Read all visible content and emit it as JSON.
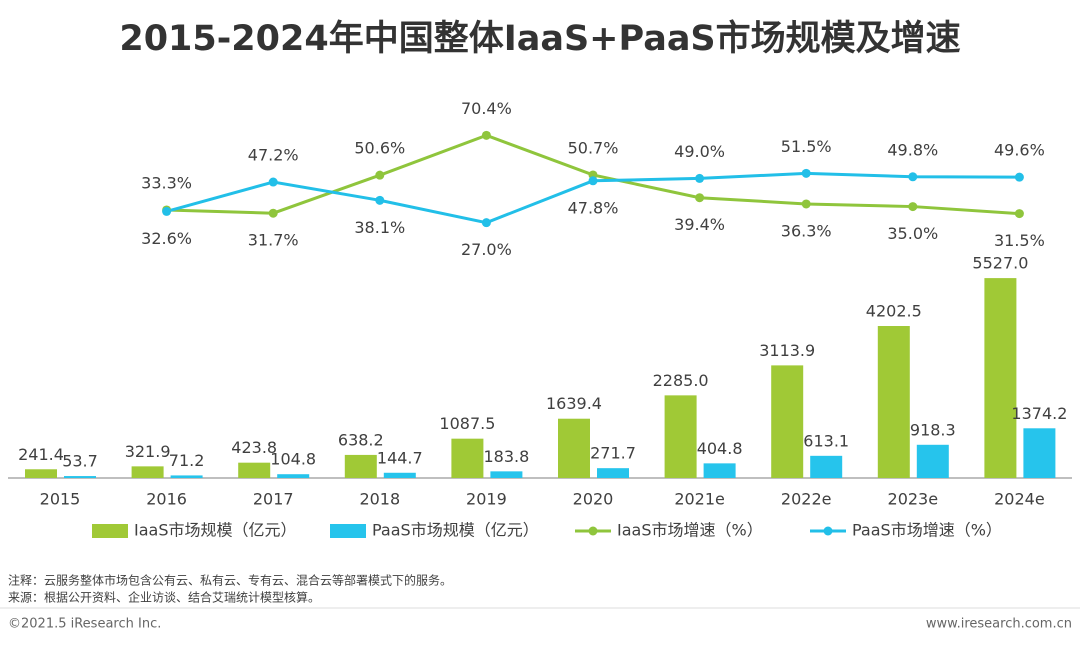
{
  "chart_data": {
    "type": "bar_line",
    "title": "2015-2024年中国整体IaaS+PaaS市场规模及增速",
    "categories": [
      "2015",
      "2016",
      "2017",
      "2018",
      "2019",
      "2020",
      "2021e",
      "2022e",
      "2023e",
      "2024e"
    ],
    "series": [
      {
        "name": "IaaS市场规模（亿元）",
        "kind": "bar",
        "color": "#a0c936",
        "values": [
          241.4,
          321.9,
          423.8,
          638.2,
          1087.5,
          1639.4,
          2285.0,
          3113.9,
          4202.5,
          5527.0
        ],
        "value_labels": [
          "241.4",
          "321.9",
          "423.8",
          "638.2",
          "1087.5",
          "1639.4",
          "2285.0",
          "3113.9",
          "4202.5",
          "5527.0"
        ]
      },
      {
        "name": "PaaS市场规模（亿元）",
        "kind": "bar",
        "color": "#26c4ec",
        "values": [
          53.7,
          71.2,
          104.8,
          144.7,
          183.8,
          271.7,
          404.8,
          613.1,
          918.3,
          1374.2
        ],
        "value_labels": [
          "53.7",
          "71.2",
          "104.8",
          "144.7",
          "183.8",
          "271.7",
          "404.8",
          "613.1",
          "918.3",
          "1374.2"
        ]
      },
      {
        "name": "IaaS市场增速（%）",
        "kind": "line",
        "axis": "y2",
        "color": "#8fc53c",
        "values": [
          null,
          33.3,
          31.7,
          50.6,
          70.4,
          50.7,
          39.4,
          36.3,
          35.0,
          31.5
        ],
        "value_labels": [
          null,
          "33.3%",
          "31.7%",
          "50.6%",
          "70.4%",
          "50.7%",
          "39.4%",
          "36.3%",
          "35.0%",
          "31.5%"
        ]
      },
      {
        "name": "PaaS市场增速（%）",
        "kind": "line",
        "axis": "y2",
        "color": "#22bfe8",
        "values": [
          null,
          32.6,
          47.2,
          38.1,
          27.0,
          47.8,
          49.0,
          51.5,
          49.8,
          49.6
        ],
        "value_labels": [
          null,
          "32.6%",
          "47.2%",
          "38.1%",
          "27.0%",
          "47.8%",
          "49.0%",
          "51.5%",
          "49.8%",
          "49.6%"
        ]
      }
    ],
    "ylim": [
      0,
      6000
    ],
    "y2lim": [
      0,
      80
    ],
    "notes": [
      "注释：云服务整体市场包含公有云、私有云、专有云、混合云等部署模式下的服务。",
      "来源：根据公开资料、企业访谈、结合艾瑞统计模型核算。"
    ],
    "footer_left": "©2021.5 iResearch Inc.",
    "footer_right": "www.iresearch.com.cn"
  }
}
